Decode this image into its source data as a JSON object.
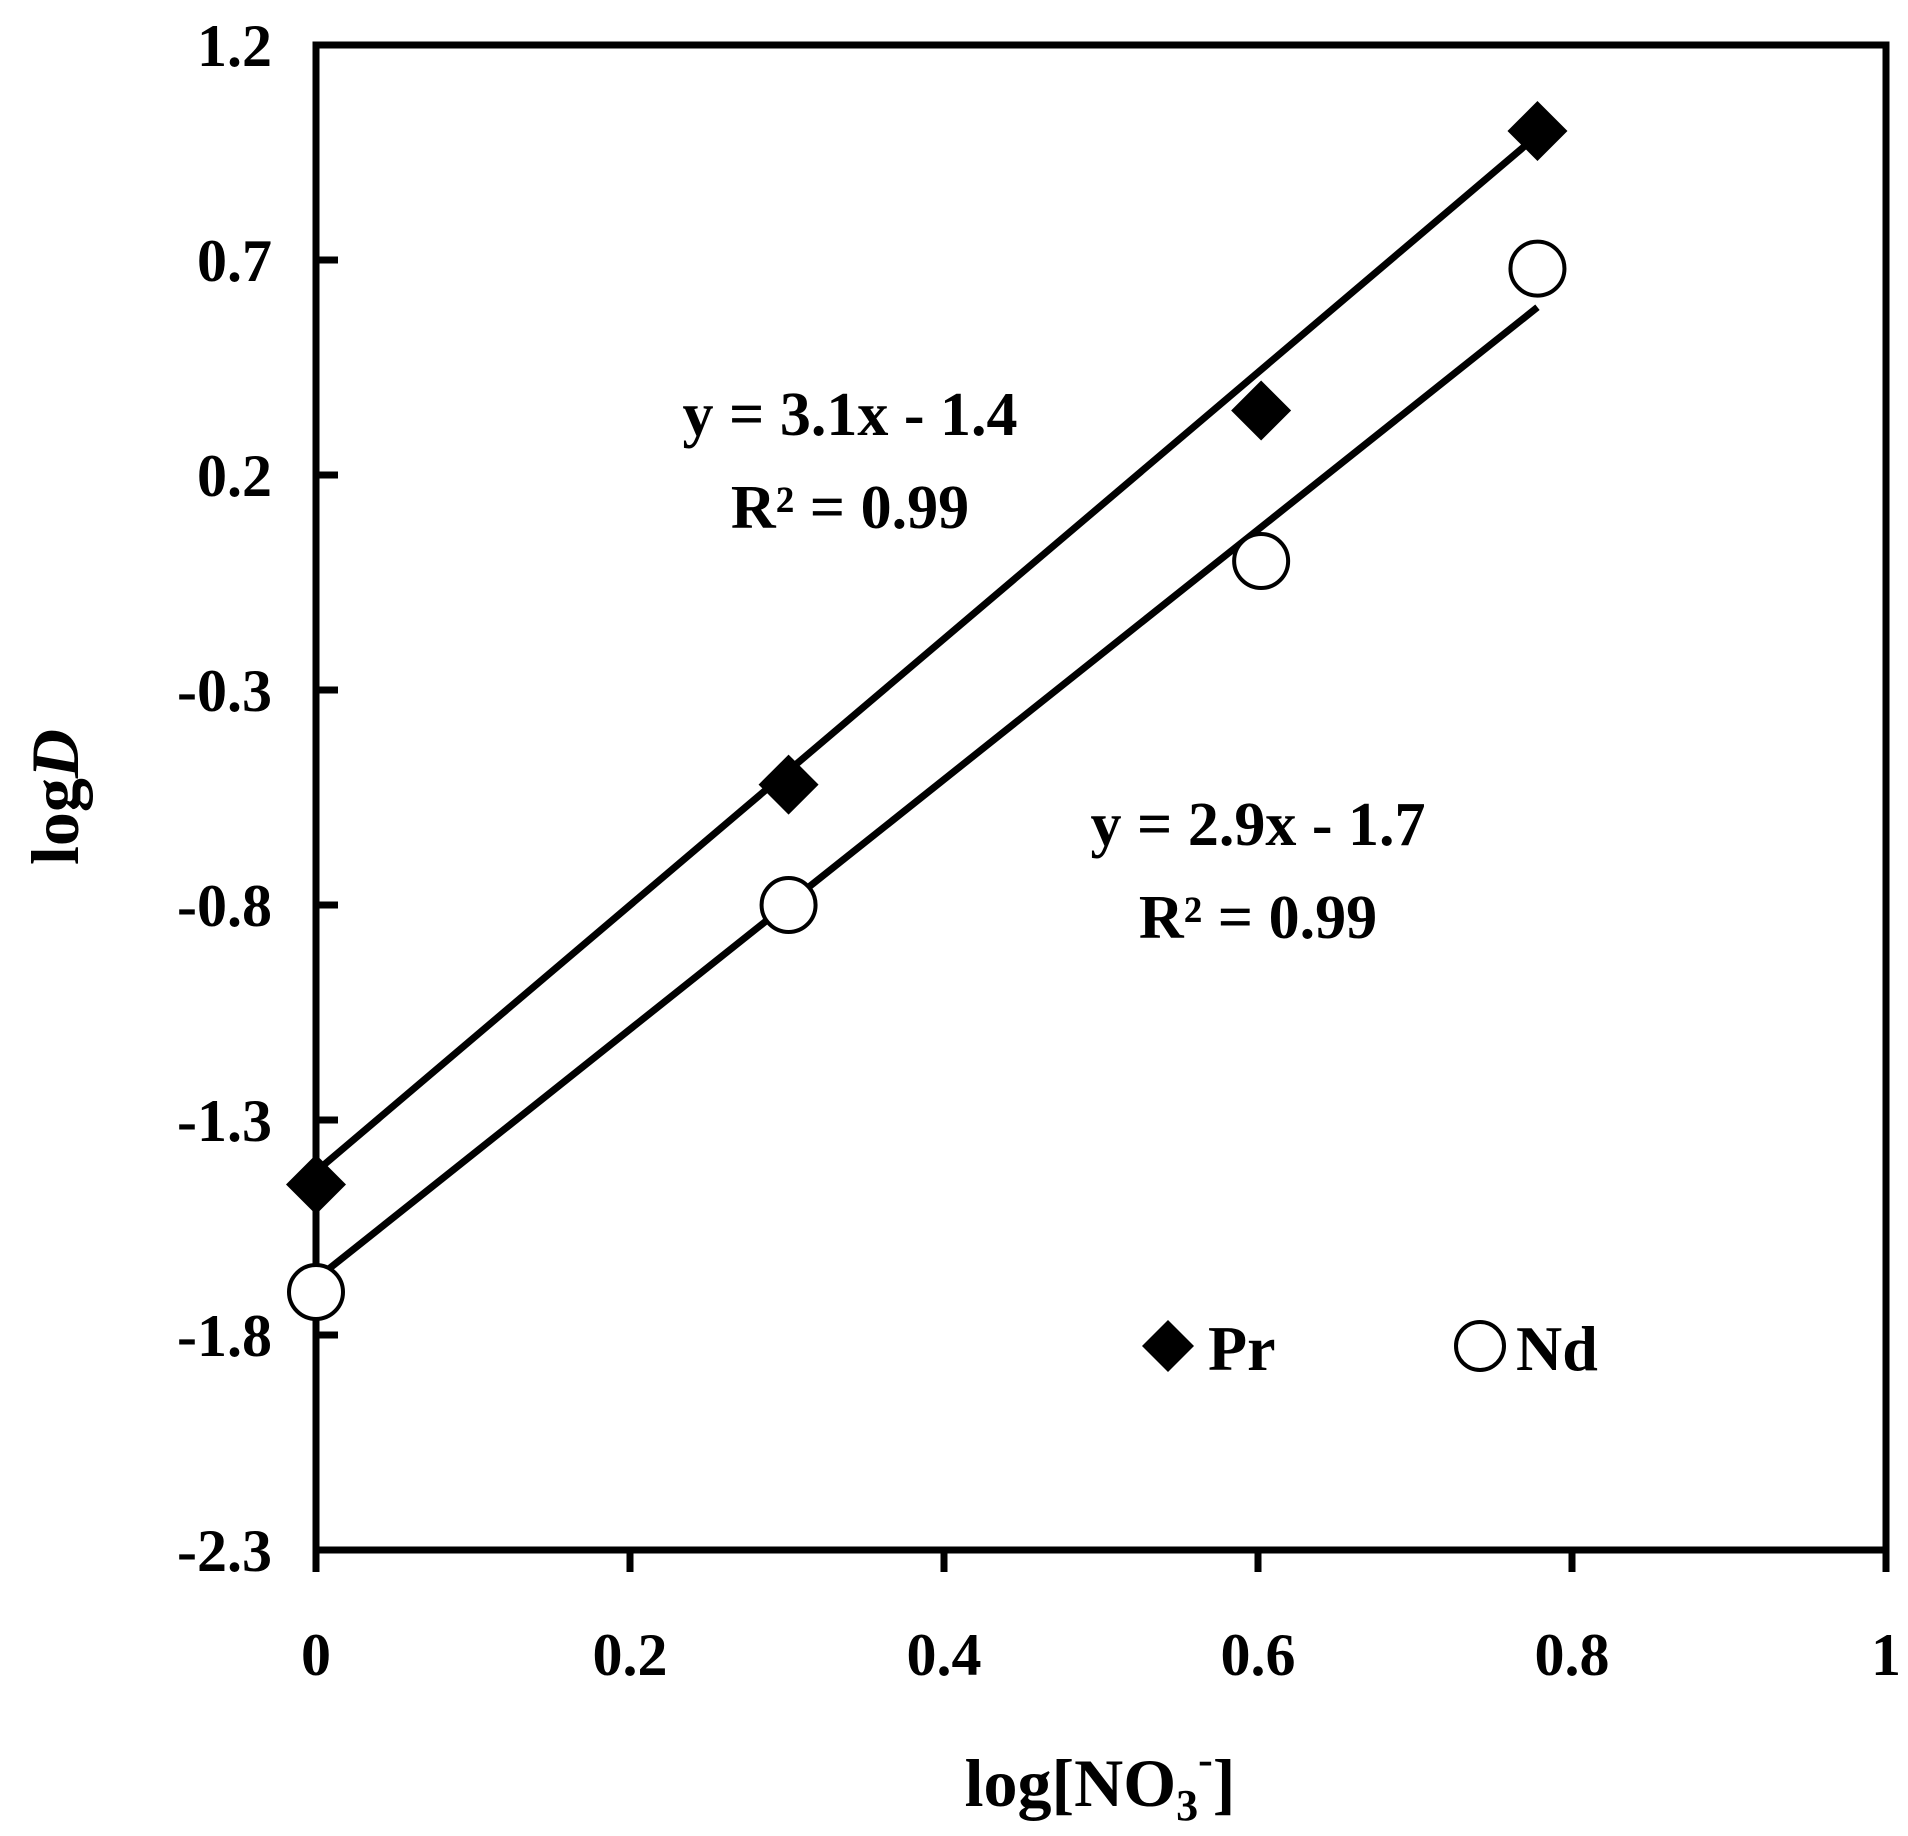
{
  "chart_data": {
    "type": "scatter",
    "title": "",
    "xlabel": {
      "base": "log[NO",
      "sub": "3",
      "sup": "-",
      "close": "]"
    },
    "ylabel": {
      "prefix": "log",
      "italic": "D"
    },
    "xlim": [
      0,
      1
    ],
    "ylim": [
      -2.3,
      1.2
    ],
    "xticks": [
      0,
      0.2,
      0.4,
      0.6,
      0.8,
      1
    ],
    "xtick_labels": [
      "0",
      "0.2",
      "0.4",
      "0.6",
      "0.8",
      "1"
    ],
    "yticks": [
      1.2,
      0.7,
      0.2,
      -0.3,
      -0.8,
      -1.3,
      -1.8,
      -2.3
    ],
    "ytick_labels": [
      "1.2",
      "0.7",
      "0.2",
      "-0.3",
      "-0.8",
      "-1.3",
      "-1.8",
      "-2.3"
    ],
    "grid": false,
    "legend_position": "bottom-right",
    "series": [
      {
        "name": "Pr",
        "marker": "diamond-filled",
        "color": "#000000",
        "x": [
          0,
          0.301,
          0.602,
          0.778
        ],
        "y": [
          -1.45,
          -0.52,
          0.35,
          1.0
        ],
        "trendline": {
          "x": [
            0,
            0.778
          ],
          "y": [
            -1.42,
            0.99
          ]
        },
        "equation": "y = 3.1x - 1.4",
        "r2": "R² = 0.99"
      },
      {
        "name": "Nd",
        "marker": "circle-open",
        "color": "#000000",
        "x": [
          0,
          0.301,
          0.602,
          0.778
        ],
        "y": [
          -1.7,
          -0.8,
          -0.0,
          0.68
        ],
        "trendline": {
          "x": [
            0,
            0.778
          ],
          "y": [
            -1.67,
            0.59
          ]
        },
        "equation": "y = 2.9x - 1.7",
        "r2": "R² = 0.99"
      }
    ]
  }
}
